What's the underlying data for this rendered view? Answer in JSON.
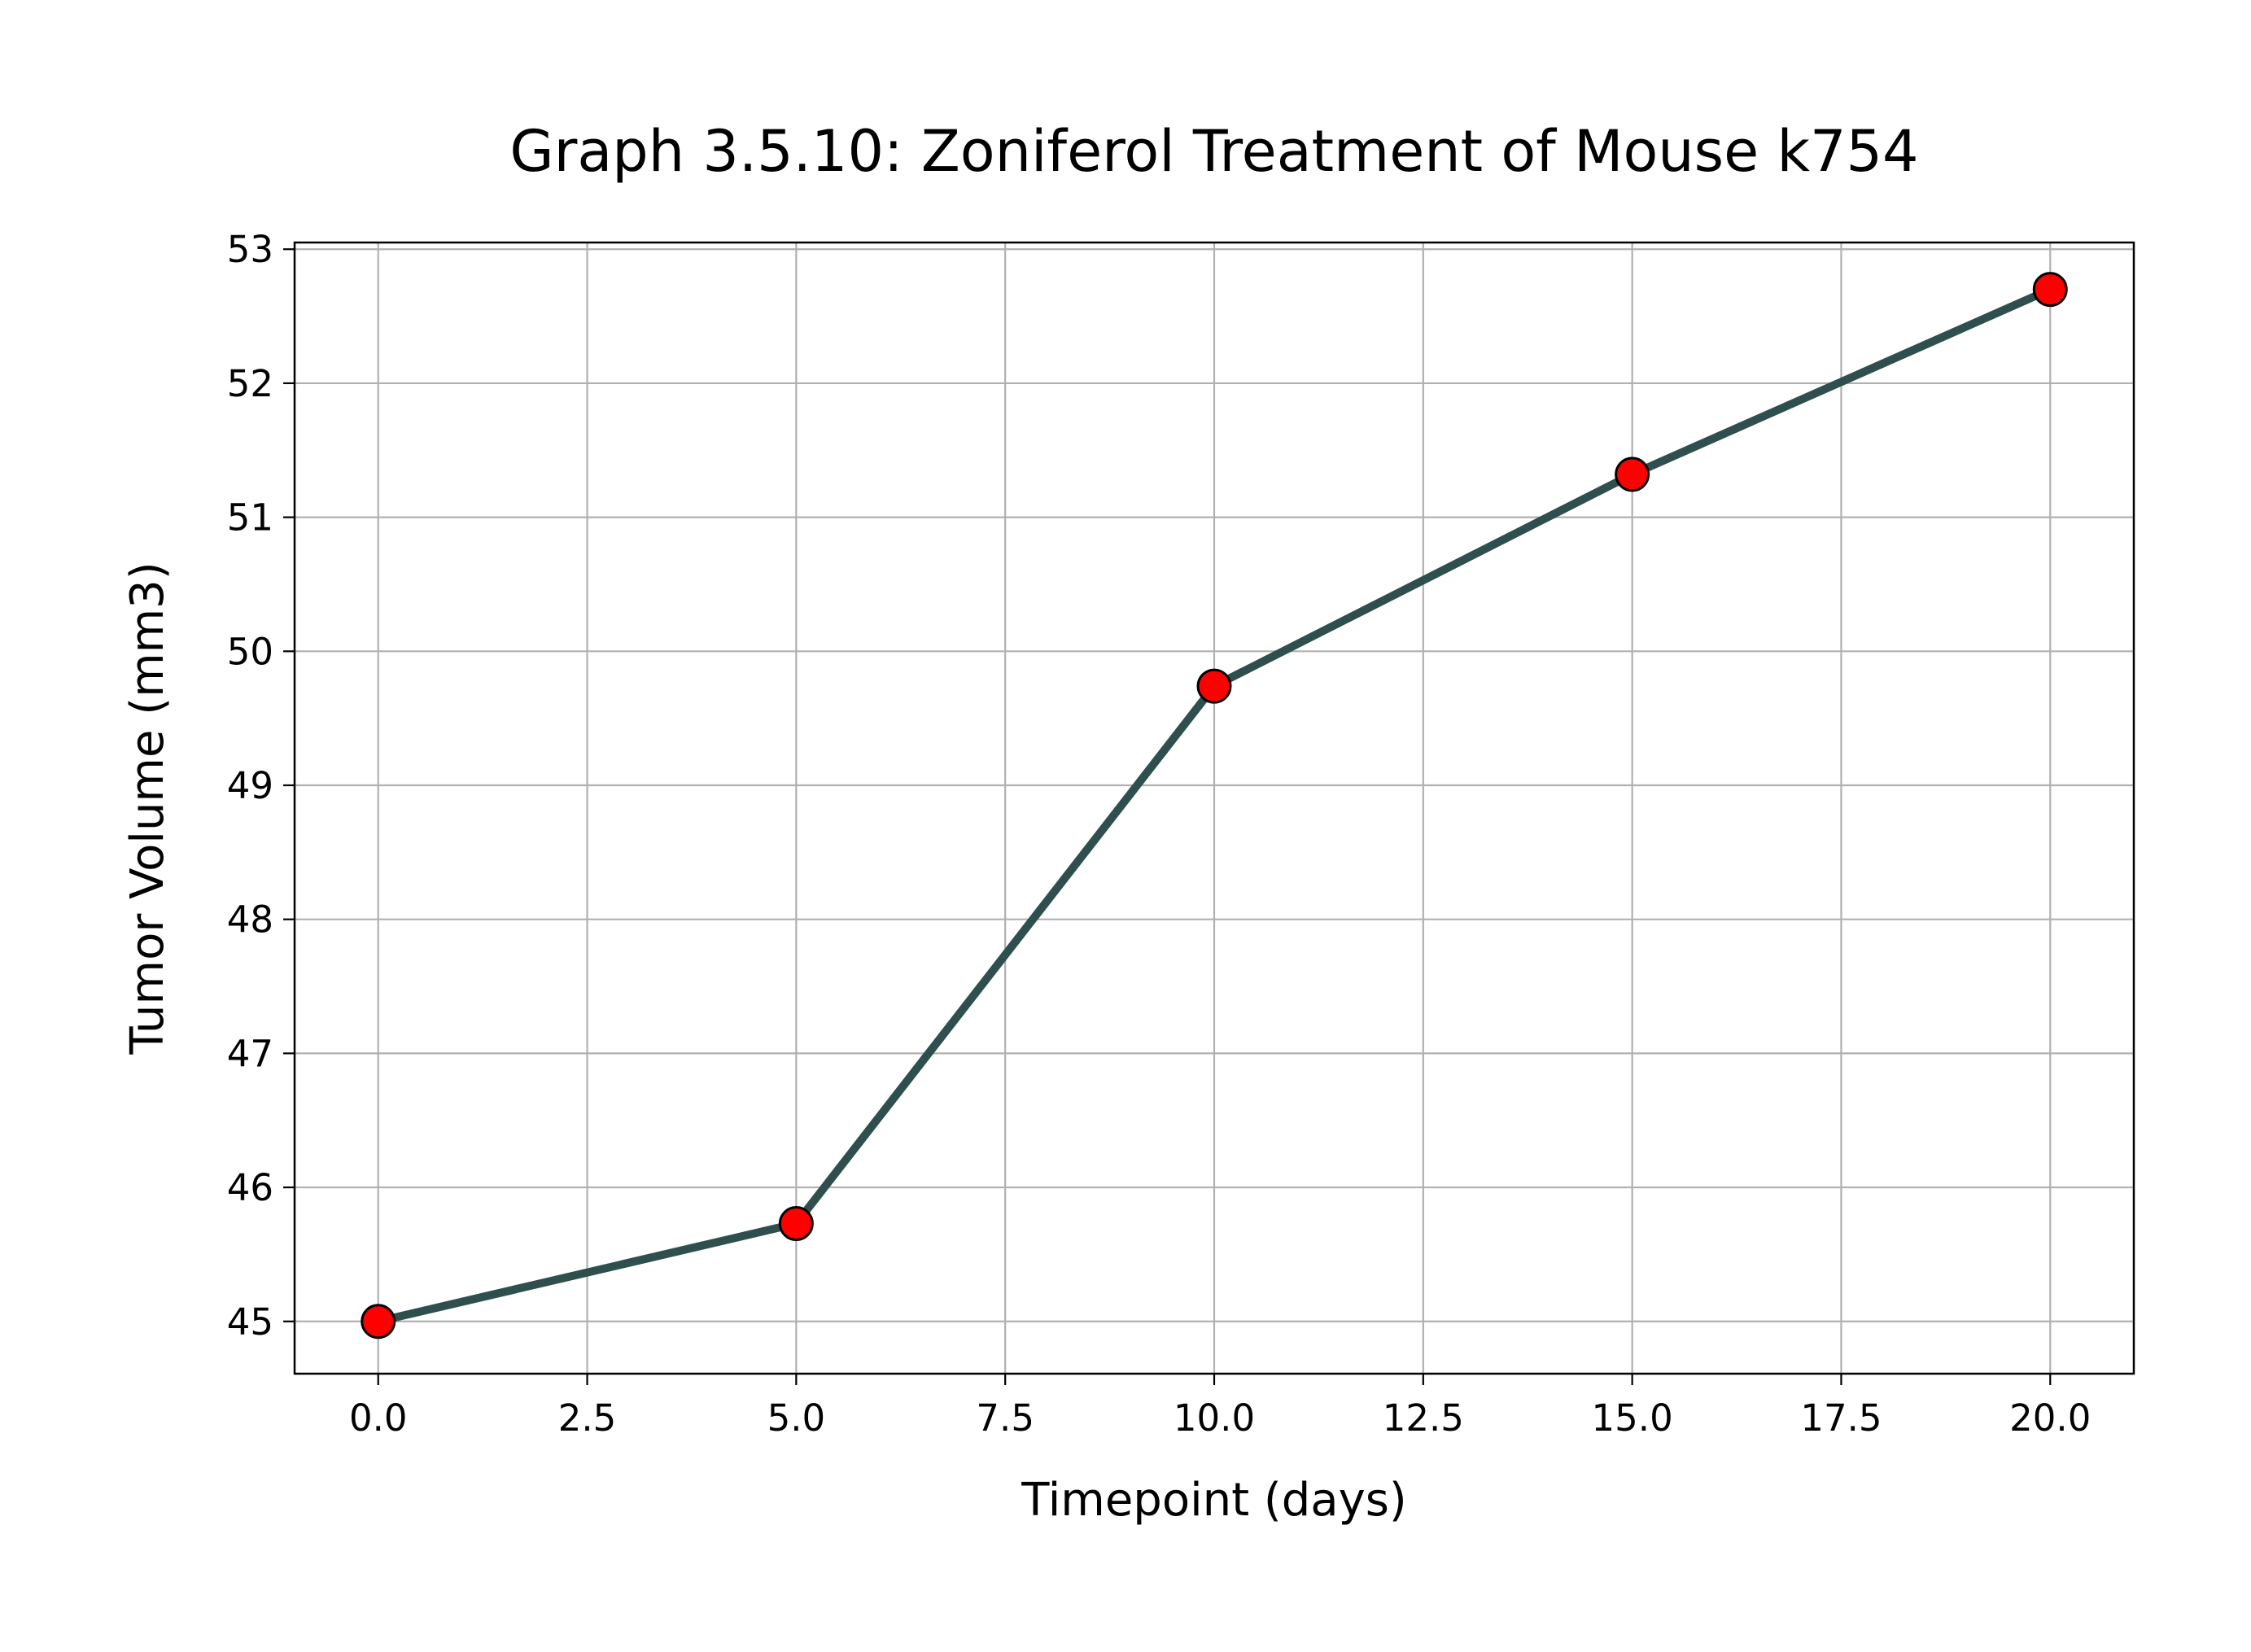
{
  "chart_data": {
    "type": "line",
    "title": "Graph 3.5.10: Zoniferol Treatment of Mouse k754",
    "xlabel": "Timepoint (days)",
    "ylabel": "Tumor Volume (mm3)",
    "xlim": [
      -1,
      21
    ],
    "ylim": [
      44.61,
      53.05
    ],
    "x_ticks": [
      0.0,
      2.5,
      5.0,
      7.5,
      10.0,
      12.5,
      15.0,
      17.5,
      20.0
    ],
    "x_tick_labels": [
      "0.0",
      "2.5",
      "5.0",
      "7.5",
      "10.0",
      "12.5",
      "15.0",
      "17.5",
      "20.0"
    ],
    "y_ticks": [
      45,
      46,
      47,
      48,
      49,
      50,
      51,
      52,
      53
    ],
    "y_tick_labels": [
      "45",
      "46",
      "47",
      "48",
      "49",
      "50",
      "51",
      "52",
      "53"
    ],
    "grid": true,
    "series": [
      {
        "x": [
          0,
          5,
          10,
          15,
          20
        ],
        "y": [
          45.0,
          45.73,
          49.74,
          51.32,
          52.7
        ],
        "line_color": "#2f4f4f",
        "marker_color": "#ff0000",
        "marker_edge_color": "#000000"
      }
    ]
  }
}
